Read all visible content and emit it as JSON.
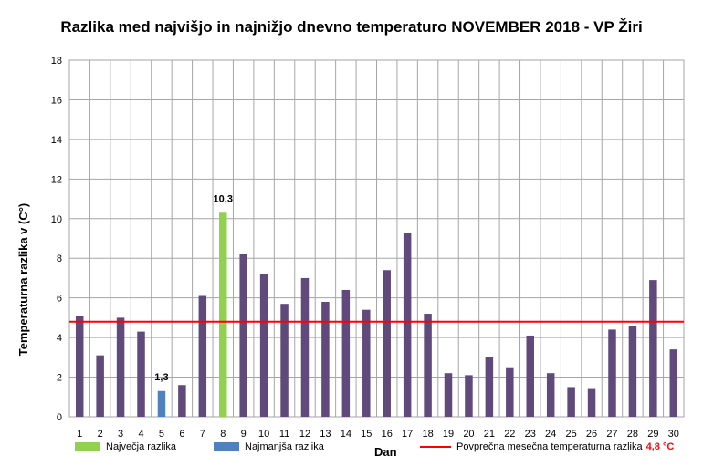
{
  "chart_data": {
    "type": "bar",
    "title": "Razlika med najvišjo in najnižjo dnevno temperaturo NOVEMBER 2018 - VP Žiri",
    "xlabel": "Dan",
    "ylabel": "Temperaturna razlika v (C°)",
    "ylim": [
      0,
      18
    ],
    "yticks": [
      "0",
      "2",
      "4",
      "6",
      "8",
      "10",
      "12",
      "14",
      "16",
      "18"
    ],
    "grid": true,
    "categories": [
      "1",
      "2",
      "3",
      "4",
      "5",
      "6",
      "7",
      "8",
      "9",
      "10",
      "11",
      "12",
      "13",
      "14",
      "15",
      "16",
      "17",
      "18",
      "19",
      "20",
      "21",
      "22",
      "23",
      "24",
      "25",
      "26",
      "27",
      "28",
      "29",
      "30"
    ],
    "values": [
      5.1,
      3.1,
      5.0,
      4.3,
      1.3,
      1.6,
      6.1,
      10.3,
      8.2,
      7.2,
      5.7,
      7.0,
      5.8,
      6.4,
      5.4,
      7.4,
      9.3,
      5.2,
      2.2,
      2.1,
      3.0,
      2.5,
      4.1,
      2.2,
      1.5,
      1.4,
      4.4,
      4.6,
      6.9,
      3.4
    ],
    "max": {
      "day": "8",
      "label": "10,3"
    },
    "min": {
      "day": "5",
      "label": "1,3"
    },
    "average": 4.8,
    "colors": {
      "default": "#604a7b",
      "max": "#92d050",
      "min": "#4f81bd",
      "average": "#ff0000",
      "grid": "#a6a6a6"
    },
    "legend": {
      "max_label": "Največja razlika",
      "min_label": "Najmanjša razlika",
      "avg_label": "Povprečna mesečna temperaturna razlika",
      "avg_value": "4,8 °C"
    }
  }
}
